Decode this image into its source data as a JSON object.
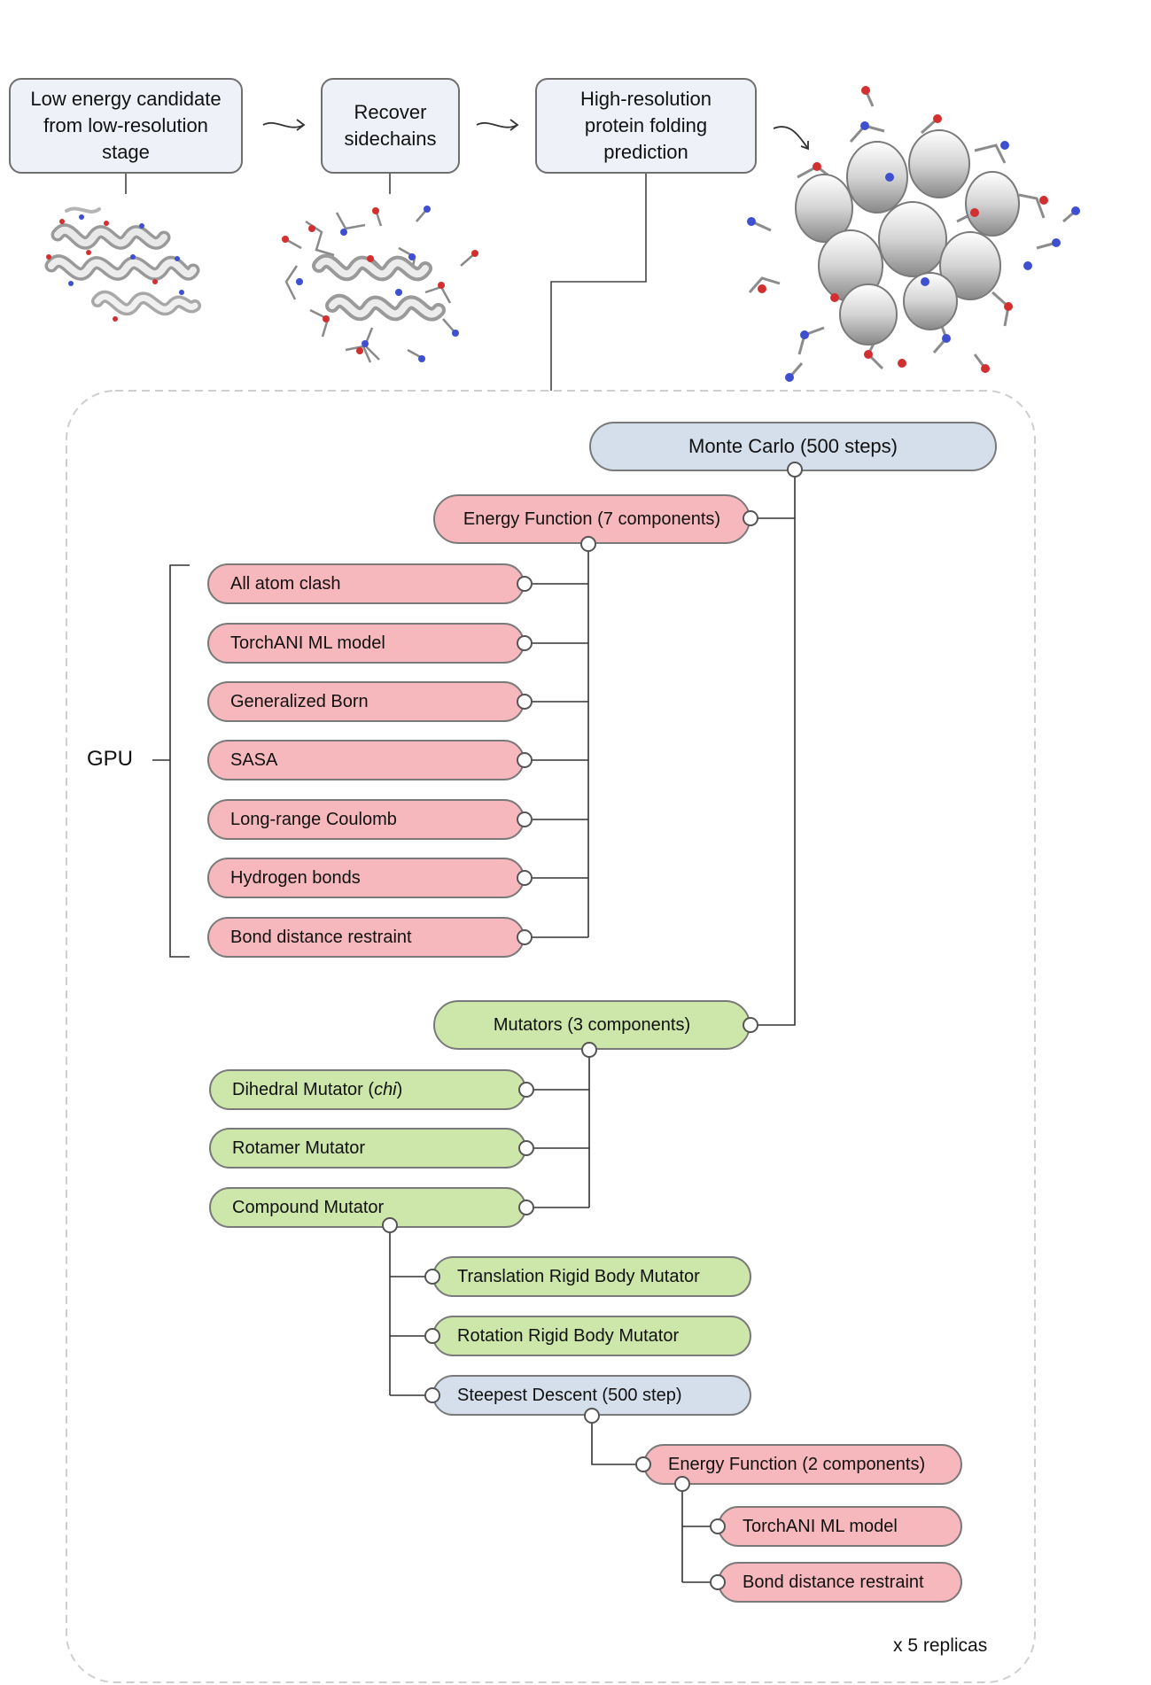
{
  "pipeline": {
    "stage1": "Low energy candidate from low-resolution stage",
    "stage2": "Recover sidechains",
    "stage3": "High-resolution protein folding prediction"
  },
  "tree": {
    "monte_carlo": "Monte Carlo (500 steps)",
    "energy_function": "Energy Function (7 components)",
    "energy_terms": [
      "All atom clash",
      "TorchANI ML model",
      "Generalized Born",
      "SASA",
      "Long-range Coulomb",
      "Hydrogen bonds",
      "Bond distance restraint"
    ],
    "gpu_label": "GPU",
    "mutators": "Mutators (3 components)",
    "mutator_items": {
      "dihedral_prefix": "Dihedral Mutator (",
      "dihedral_chi": "chi",
      "dihedral_suffix": ")",
      "rotamer": "Rotamer Mutator",
      "compound": "Compound Mutator"
    },
    "compound_children": [
      "Translation Rigid Body Mutator",
      "Rotation Rigid Body Mutator"
    ],
    "steepest_descent": "Steepest Descent (500 step)",
    "energy_function_2": "Energy Function (2 components)",
    "energy_terms_2": [
      "TorchANI ML model",
      "Bond distance restraint"
    ]
  },
  "replicas_note": "x 5 replicas",
  "colors": {
    "energy": "#f7b8bd",
    "mutator": "#cde6a9",
    "optimizer": "#d5dfec",
    "stage_box": "#eef1f7"
  }
}
